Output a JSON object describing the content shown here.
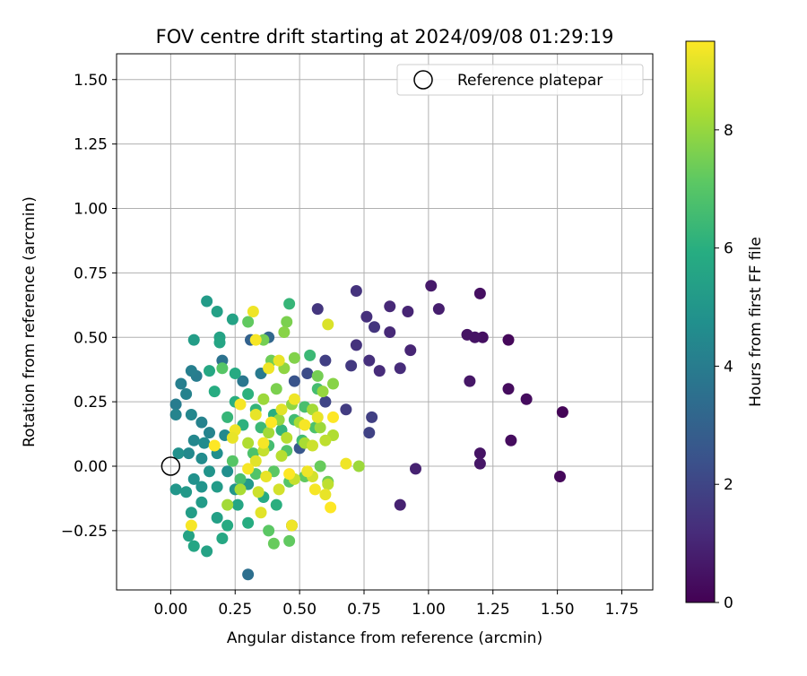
{
  "chart_data": {
    "type": "scatter",
    "title": "FOV centre drift starting at 2024/09/08 01:29:19",
    "xlabel": "Angular distance from reference (arcmin)",
    "ylabel": "Rotation from reference (arcmin)",
    "xlim": [
      -0.21,
      1.87
    ],
    "ylim": [
      -0.48,
      1.6
    ],
    "xticks": [
      0.0,
      0.25,
      0.5,
      0.75,
      1.0,
      1.25,
      1.5,
      1.75
    ],
    "xtick_labels": [
      "0.00",
      "0.25",
      "0.50",
      "0.75",
      "1.00",
      "1.25",
      "1.50",
      "1.75"
    ],
    "yticks": [
      -0.25,
      0.0,
      0.25,
      0.5,
      0.75,
      1.0,
      1.25,
      1.5
    ],
    "ytick_labels": [
      "−0.25",
      "0.00",
      "0.25",
      "0.50",
      "0.75",
      "1.00",
      "1.25",
      "1.50"
    ],
    "grid": true,
    "legend": {
      "placement": "upper-right",
      "entries": [
        "Reference platepar"
      ]
    },
    "reference_point": {
      "x": 0.0,
      "y": 0.0,
      "label": "Reference platepar"
    },
    "colorbar": {
      "label": "Hours from first FF file",
      "colormap": "viridis",
      "range": [
        0,
        9.5
      ],
      "ticks": [
        0,
        2,
        4,
        6,
        8
      ],
      "tick_labels": [
        "0",
        "2",
        "4",
        "6",
        "8"
      ]
    },
    "points": [
      {
        "x": 1.52,
        "y": 0.21,
        "c": 0.1
      },
      {
        "x": 1.51,
        "y": -0.04,
        "c": 0.2
      },
      {
        "x": 1.38,
        "y": 0.26,
        "c": 0.3
      },
      {
        "x": 1.32,
        "y": 0.1,
        "c": 0.3
      },
      {
        "x": 1.31,
        "y": 0.49,
        "c": 0.2
      },
      {
        "x": 1.31,
        "y": 0.3,
        "c": 0.3
      },
      {
        "x": 1.2,
        "y": 0.67,
        "c": 0.4
      },
      {
        "x": 1.21,
        "y": 0.5,
        "c": 0.4
      },
      {
        "x": 1.18,
        "y": 0.5,
        "c": 0.5
      },
      {
        "x": 1.15,
        "y": 0.51,
        "c": 0.5
      },
      {
        "x": 1.16,
        "y": 0.33,
        "c": 0.6
      },
      {
        "x": 1.2,
        "y": 0.05,
        "c": 0.5
      },
      {
        "x": 1.2,
        "y": 0.01,
        "c": 0.6
      },
      {
        "x": 1.01,
        "y": 0.7,
        "c": 0.7
      },
      {
        "x": 1.04,
        "y": 0.61,
        "c": 0.8
      },
      {
        "x": 0.95,
        "y": -0.01,
        "c": 0.9
      },
      {
        "x": 0.89,
        "y": -0.15,
        "c": 0.9
      },
      {
        "x": 0.93,
        "y": 0.45,
        "c": 1.0
      },
      {
        "x": 0.92,
        "y": 0.6,
        "c": 1.0
      },
      {
        "x": 0.85,
        "y": 0.62,
        "c": 1.1
      },
      {
        "x": 0.85,
        "y": 0.52,
        "c": 1.1
      },
      {
        "x": 0.89,
        "y": 0.38,
        "c": 1.2
      },
      {
        "x": 0.81,
        "y": 0.37,
        "c": 1.2
      },
      {
        "x": 0.77,
        "y": 0.41,
        "c": 1.3
      },
      {
        "x": 0.72,
        "y": 0.68,
        "c": 1.4
      },
      {
        "x": 0.76,
        "y": 0.58,
        "c": 1.3
      },
      {
        "x": 0.79,
        "y": 0.54,
        "c": 1.5
      },
      {
        "x": 0.72,
        "y": 0.47,
        "c": 1.4
      },
      {
        "x": 0.7,
        "y": 0.39,
        "c": 1.6
      },
      {
        "x": 0.78,
        "y": 0.19,
        "c": 1.8
      },
      {
        "x": 0.77,
        "y": 0.13,
        "c": 1.9
      },
      {
        "x": 0.68,
        "y": 0.22,
        "c": 1.7
      },
      {
        "x": 0.57,
        "y": 0.61,
        "c": 1.5
      },
      {
        "x": 0.6,
        "y": 0.41,
        "c": 1.8
      },
      {
        "x": 0.53,
        "y": 0.36,
        "c": 2.2
      },
      {
        "x": 0.48,
        "y": 0.33,
        "c": 2.5
      },
      {
        "x": 0.6,
        "y": 0.25,
        "c": 2.0
      },
      {
        "x": 0.5,
        "y": 0.07,
        "c": 2.6
      },
      {
        "x": 0.47,
        "y": -0.23,
        "c": 2.8
      },
      {
        "x": 0.31,
        "y": 0.49,
        "c": 3.0
      },
      {
        "x": 0.38,
        "y": 0.5,
        "c": 3.2
      },
      {
        "x": 0.3,
        "y": -0.42,
        "c": 3.5
      },
      {
        "x": 0.2,
        "y": 0.41,
        "c": 3.6
      },
      {
        "x": 0.28,
        "y": 0.33,
        "c": 3.8
      },
      {
        "x": 0.35,
        "y": 0.36,
        "c": 3.9
      },
      {
        "x": 0.1,
        "y": 0.35,
        "c": 4.0
      },
      {
        "x": 0.08,
        "y": 0.37,
        "c": 4.1
      },
      {
        "x": 0.04,
        "y": 0.32,
        "c": 4.1
      },
      {
        "x": 0.06,
        "y": 0.28,
        "c": 4.2
      },
      {
        "x": 0.02,
        "y": 0.24,
        "c": 4.0
      },
      {
        "x": 0.02,
        "y": 0.2,
        "c": 4.3
      },
      {
        "x": 0.08,
        "y": 0.2,
        "c": 4.4
      },
      {
        "x": 0.12,
        "y": 0.17,
        "c": 4.2
      },
      {
        "x": 0.15,
        "y": 0.13,
        "c": 4.3
      },
      {
        "x": 0.21,
        "y": 0.12,
        "c": 4.5
      },
      {
        "x": 0.09,
        "y": 0.1,
        "c": 4.4
      },
      {
        "x": 0.13,
        "y": 0.09,
        "c": 4.6
      },
      {
        "x": 0.18,
        "y": 0.05,
        "c": 4.7
      },
      {
        "x": 0.07,
        "y": 0.05,
        "c": 4.5
      },
      {
        "x": 0.12,
        "y": 0.03,
        "c": 4.6
      },
      {
        "x": 0.03,
        "y": 0.05,
        "c": 4.8
      },
      {
        "x": 0.22,
        "y": -0.02,
        "c": 4.7
      },
      {
        "x": 0.15,
        "y": -0.02,
        "c": 4.9
      },
      {
        "x": 0.09,
        "y": -0.05,
        "c": 4.8
      },
      {
        "x": 0.02,
        "y": -0.09,
        "c": 5.0
      },
      {
        "x": 0.06,
        "y": -0.1,
        "c": 5.1
      },
      {
        "x": 0.12,
        "y": -0.08,
        "c": 4.9
      },
      {
        "x": 0.18,
        "y": -0.08,
        "c": 5.2
      },
      {
        "x": 0.25,
        "y": -0.09,
        "c": 5.0
      },
      {
        "x": 0.3,
        "y": -0.07,
        "c": 5.1
      },
      {
        "x": 0.08,
        "y": -0.18,
        "c": 5.3
      },
      {
        "x": 0.12,
        "y": -0.14,
        "c": 5.2
      },
      {
        "x": 0.18,
        "y": -0.2,
        "c": 5.4
      },
      {
        "x": 0.07,
        "y": -0.27,
        "c": 5.5
      },
      {
        "x": 0.09,
        "y": -0.31,
        "c": 5.6
      },
      {
        "x": 0.14,
        "y": -0.33,
        "c": 5.5
      },
      {
        "x": 0.2,
        "y": -0.28,
        "c": 5.7
      },
      {
        "x": 0.22,
        "y": -0.23,
        "c": 5.8
      },
      {
        "x": 0.3,
        "y": -0.22,
        "c": 5.9
      },
      {
        "x": 0.26,
        "y": -0.15,
        "c": 5.6
      },
      {
        "x": 0.36,
        "y": -0.12,
        "c": 5.8
      },
      {
        "x": 0.41,
        "y": -0.15,
        "c": 6.0
      },
      {
        "x": 0.14,
        "y": 0.64,
        "c": 5.2
      },
      {
        "x": 0.18,
        "y": 0.6,
        "c": 5.4
      },
      {
        "x": 0.24,
        "y": 0.57,
        "c": 5.5
      },
      {
        "x": 0.09,
        "y": 0.49,
        "c": 5.3
      },
      {
        "x": 0.19,
        "y": 0.5,
        "c": 5.5
      },
      {
        "x": 0.19,
        "y": 0.48,
        "c": 5.6
      },
      {
        "x": 0.15,
        "y": 0.37,
        "c": 5.7
      },
      {
        "x": 0.25,
        "y": 0.36,
        "c": 5.8
      },
      {
        "x": 0.17,
        "y": 0.29,
        "c": 5.9
      },
      {
        "x": 0.25,
        "y": 0.25,
        "c": 6.0
      },
      {
        "x": 0.3,
        "y": 0.28,
        "c": 6.1
      },
      {
        "x": 0.33,
        "y": 0.22,
        "c": 6.2
      },
      {
        "x": 0.4,
        "y": 0.2,
        "c": 6.0
      },
      {
        "x": 0.22,
        "y": 0.19,
        "c": 6.3
      },
      {
        "x": 0.28,
        "y": 0.16,
        "c": 6.1
      },
      {
        "x": 0.35,
        "y": 0.15,
        "c": 6.4
      },
      {
        "x": 0.43,
        "y": 0.14,
        "c": 6.2
      },
      {
        "x": 0.48,
        "y": 0.18,
        "c": 6.5
      },
      {
        "x": 0.46,
        "y": 0.63,
        "c": 6.3
      },
      {
        "x": 0.54,
        "y": 0.43,
        "c": 6.4
      },
      {
        "x": 0.57,
        "y": 0.3,
        "c": 6.6
      },
      {
        "x": 0.52,
        "y": 0.23,
        "c": 6.7
      },
      {
        "x": 0.56,
        "y": 0.15,
        "c": 6.8
      },
      {
        "x": 0.51,
        "y": 0.1,
        "c": 6.5
      },
      {
        "x": 0.45,
        "y": 0.06,
        "c": 6.9
      },
      {
        "x": 0.38,
        "y": 0.08,
        "c": 6.6
      },
      {
        "x": 0.32,
        "y": 0.05,
        "c": 6.8
      },
      {
        "x": 0.24,
        "y": 0.02,
        "c": 7.0
      },
      {
        "x": 0.27,
        "y": -0.05,
        "c": 6.7
      },
      {
        "x": 0.33,
        "y": -0.03,
        "c": 6.9
      },
      {
        "x": 0.4,
        "y": -0.02,
        "c": 7.1
      },
      {
        "x": 0.46,
        "y": -0.06,
        "c": 7.0
      },
      {
        "x": 0.52,
        "y": -0.04,
        "c": 7.2
      },
      {
        "x": 0.58,
        "y": 0.0,
        "c": 7.3
      },
      {
        "x": 0.61,
        "y": -0.06,
        "c": 7.4
      },
      {
        "x": 0.38,
        "y": -0.25,
        "c": 7.1
      },
      {
        "x": 0.4,
        "y": -0.3,
        "c": 7.3
      },
      {
        "x": 0.46,
        "y": -0.29,
        "c": 7.2
      },
      {
        "x": 0.2,
        "y": 0.38,
        "c": 7.0
      },
      {
        "x": 0.3,
        "y": 0.56,
        "c": 7.2
      },
      {
        "x": 0.36,
        "y": 0.49,
        "c": 7.5
      },
      {
        "x": 0.45,
        "y": 0.56,
        "c": 7.6
      },
      {
        "x": 0.44,
        "y": 0.52,
        "c": 7.8
      },
      {
        "x": 0.39,
        "y": 0.41,
        "c": 7.4
      },
      {
        "x": 0.48,
        "y": 0.42,
        "c": 7.7
      },
      {
        "x": 0.44,
        "y": 0.38,
        "c": 7.9
      },
      {
        "x": 0.57,
        "y": 0.35,
        "c": 7.5
      },
      {
        "x": 0.63,
        "y": 0.32,
        "c": 7.8
      },
      {
        "x": 0.59,
        "y": 0.29,
        "c": 8.0
      },
      {
        "x": 0.41,
        "y": 0.3,
        "c": 7.6
      },
      {
        "x": 0.36,
        "y": 0.26,
        "c": 8.1
      },
      {
        "x": 0.47,
        "y": 0.24,
        "c": 7.9
      },
      {
        "x": 0.55,
        "y": 0.22,
        "c": 8.2
      },
      {
        "x": 0.42,
        "y": 0.18,
        "c": 8.0
      },
      {
        "x": 0.5,
        "y": 0.17,
        "c": 8.3
      },
      {
        "x": 0.58,
        "y": 0.15,
        "c": 8.1
      },
      {
        "x": 0.63,
        "y": 0.12,
        "c": 8.4
      },
      {
        "x": 0.38,
        "y": 0.13,
        "c": 8.2
      },
      {
        "x": 0.45,
        "y": 0.11,
        "c": 8.5
      },
      {
        "x": 0.52,
        "y": 0.09,
        "c": 8.3
      },
      {
        "x": 0.6,
        "y": 0.1,
        "c": 8.6
      },
      {
        "x": 0.3,
        "y": 0.09,
        "c": 8.4
      },
      {
        "x": 0.36,
        "y": 0.06,
        "c": 8.7
      },
      {
        "x": 0.43,
        "y": 0.04,
        "c": 8.5
      },
      {
        "x": 0.55,
        "y": 0.08,
        "c": 8.8
      },
      {
        "x": 0.73,
        "y": 0.0,
        "c": 8.1
      },
      {
        "x": 0.61,
        "y": -0.07,
        "c": 8.6
      },
      {
        "x": 0.55,
        "y": -0.04,
        "c": 8.9
      },
      {
        "x": 0.48,
        "y": -0.05,
        "c": 8.7
      },
      {
        "x": 0.42,
        "y": -0.09,
        "c": 8.9
      },
      {
        "x": 0.34,
        "y": -0.1,
        "c": 8.8
      },
      {
        "x": 0.27,
        "y": -0.09,
        "c": 8.3
      },
      {
        "x": 0.22,
        "y": -0.15,
        "c": 8.2
      },
      {
        "x": 0.32,
        "y": 0.6,
        "c": 9.3
      },
      {
        "x": 0.33,
        "y": 0.49,
        "c": 9.4
      },
      {
        "x": 0.61,
        "y": 0.55,
        "c": 9.0
      },
      {
        "x": 0.42,
        "y": 0.41,
        "c": 9.2
      },
      {
        "x": 0.38,
        "y": 0.38,
        "c": 9.3
      },
      {
        "x": 0.27,
        "y": 0.24,
        "c": 9.4
      },
      {
        "x": 0.33,
        "y": 0.2,
        "c": 9.2
      },
      {
        "x": 0.39,
        "y": 0.17,
        "c": 9.5
      },
      {
        "x": 0.43,
        "y": 0.22,
        "c": 9.1
      },
      {
        "x": 0.48,
        "y": 0.26,
        "c": 9.3
      },
      {
        "x": 0.52,
        "y": 0.16,
        "c": 9.4
      },
      {
        "x": 0.57,
        "y": 0.19,
        "c": 9.2
      },
      {
        "x": 0.63,
        "y": 0.19,
        "c": 9.5
      },
      {
        "x": 0.25,
        "y": 0.14,
        "c": 9.3
      },
      {
        "x": 0.36,
        "y": 0.09,
        "c": 9.4
      },
      {
        "x": 0.24,
        "y": 0.11,
        "c": 9.2
      },
      {
        "x": 0.17,
        "y": 0.08,
        "c": 9.5
      },
      {
        "x": 0.33,
        "y": 0.02,
        "c": 9.1
      },
      {
        "x": 0.68,
        "y": 0.01,
        "c": 9.3
      },
      {
        "x": 0.3,
        "y": -0.01,
        "c": 9.4
      },
      {
        "x": 0.37,
        "y": -0.04,
        "c": 9.2
      },
      {
        "x": 0.46,
        "y": -0.03,
        "c": 9.5
      },
      {
        "x": 0.53,
        "y": -0.02,
        "c": 9.3
      },
      {
        "x": 0.56,
        "y": -0.09,
        "c": 9.4
      },
      {
        "x": 0.6,
        "y": -0.11,
        "c": 9.2
      },
      {
        "x": 0.62,
        "y": -0.16,
        "c": 9.5
      },
      {
        "x": 0.35,
        "y": -0.18,
        "c": 9.1
      },
      {
        "x": 0.08,
        "y": -0.23,
        "c": 9.4
      },
      {
        "x": 0.47,
        "y": -0.23,
        "c": 9.3
      }
    ]
  }
}
